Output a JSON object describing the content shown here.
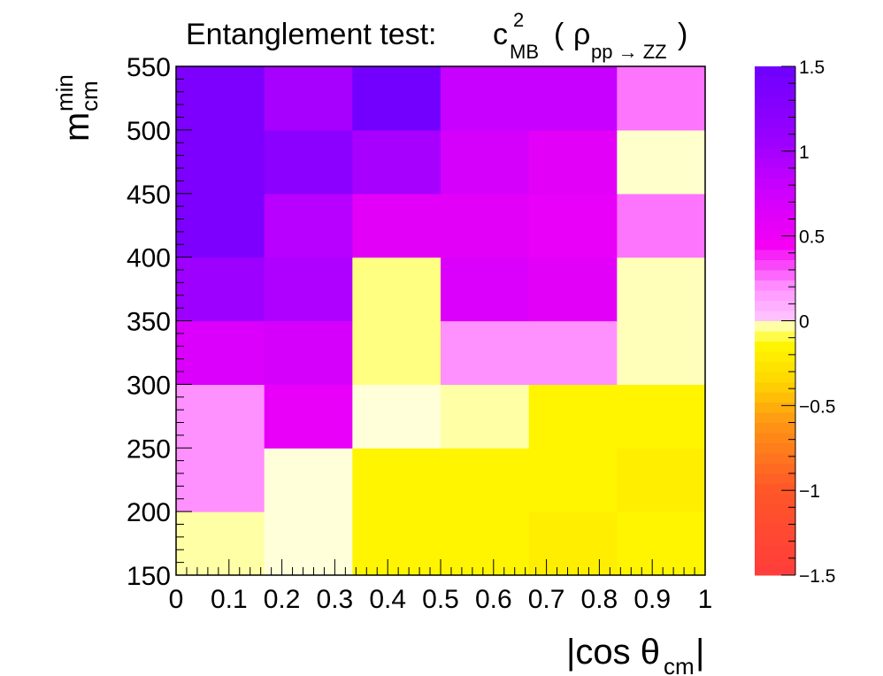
{
  "chart_data": {
    "type": "heatmap",
    "title": {
      "main": "Entanglement test:",
      "c": "c",
      "c_sup": "2",
      "c_sub": "MB",
      "open": "(",
      "rho": "ρ",
      "rho_sub": "pp → ZZ",
      "close": ")"
    },
    "xlabel": {
      "main": "|cos θ",
      "sub": "cm",
      "tail": "|"
    },
    "ylabel": {
      "main": "m",
      "sup": "min",
      "sub": "cm"
    },
    "x_edges": [
      0,
      0.1667,
      0.3333,
      0.5,
      0.6667,
      0.8333,
      1.0
    ],
    "y_edges": [
      150,
      200,
      250,
      300,
      350,
      400,
      450,
      500,
      550
    ],
    "xlim": [
      0,
      1
    ],
    "ylim": [
      150,
      550
    ],
    "x_ticks": [
      "0",
      "0.1",
      "0.2",
      "0.3",
      "0.4",
      "0.5",
      "0.6",
      "0.7",
      "0.8",
      "0.9",
      "1"
    ],
    "y_ticks": [
      "150",
      "200",
      "250",
      "300",
      "350",
      "400",
      "450",
      "500",
      "550"
    ],
    "z_range": [
      -1.5,
      1.5
    ],
    "z_ticks": [
      "1.5",
      "1",
      "0.5",
      "0",
      "−0.5",
      "−1",
      "−1.5"
    ],
    "values": [
      [
        -0.03,
        -0.002,
        -0.15,
        -0.15,
        -0.2,
        -0.15
      ],
      [
        0.2,
        -0.002,
        -0.15,
        -0.15,
        -0.15,
        -0.2
      ],
      [
        0.2,
        0.55,
        -0.002,
        -0.03,
        -0.15,
        -0.15
      ],
      [
        0.65,
        0.7,
        -0.05,
        0.2,
        0.2,
        -0.02
      ],
      [
        1.05,
        0.95,
        -0.05,
        0.65,
        0.6,
        -0.02
      ],
      [
        1.35,
        0.9,
        0.6,
        0.6,
        0.55,
        0.25
      ],
      [
        1.35,
        1.2,
        1.0,
        0.7,
        0.6,
        -0.01
      ],
      [
        1.35,
        1.0,
        1.45,
        0.8,
        0.8,
        0.25
      ]
    ]
  }
}
